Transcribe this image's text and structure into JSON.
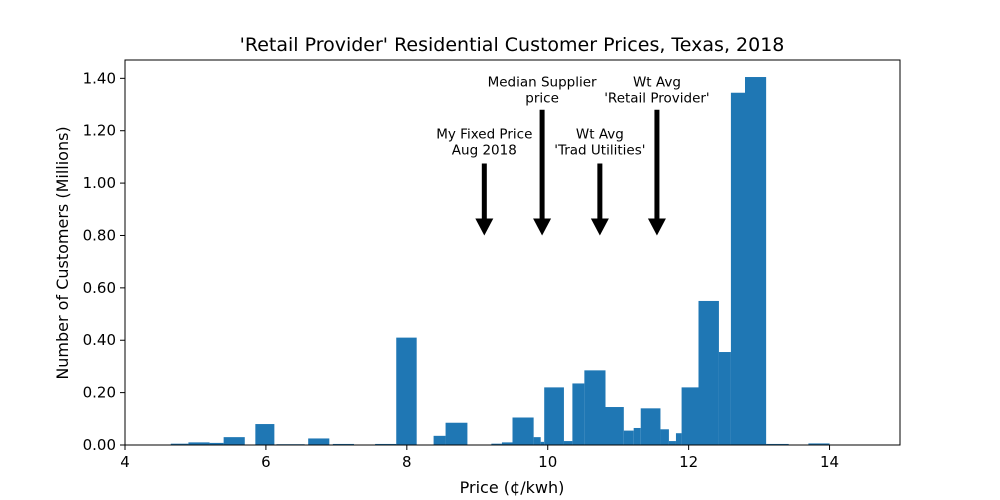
{
  "chart_data": {
    "type": "bar",
    "title": "'Retail Provider' Residential Customer Prices, Texas, 2018",
    "xlabel": "Price (¢/kwh)",
    "ylabel": "Number of Customers (Millions)",
    "xlim": [
      4,
      15
    ],
    "ylim": [
      0,
      1.47
    ],
    "xticks": [
      4,
      6,
      8,
      10,
      12,
      14
    ],
    "xtick_labels": [
      "4",
      "6",
      "8",
      "10",
      "12",
      "14"
    ],
    "yticks": [
      0,
      0.2,
      0.4,
      0.6,
      0.8,
      1.0,
      1.2,
      1.4
    ],
    "ytick_labels": [
      "0.00",
      "0.20",
      "0.40",
      "0.60",
      "0.80",
      "1.00",
      "1.20",
      "1.40"
    ],
    "grid": false,
    "bar_color": "#1f77b4",
    "bins": [
      {
        "x0": 4.65,
        "x1": 4.9,
        "value": 0.005
      },
      {
        "x0": 4.9,
        "x1": 5.2,
        "value": 0.01
      },
      {
        "x0": 5.2,
        "x1": 5.4,
        "value": 0.008
      },
      {
        "x0": 5.4,
        "x1": 5.7,
        "value": 0.03
      },
      {
        "x0": 5.85,
        "x1": 6.12,
        "value": 0.08
      },
      {
        "x0": 6.15,
        "x1": 6.55,
        "value": 0.003
      },
      {
        "x0": 6.6,
        "x1": 6.9,
        "value": 0.025
      },
      {
        "x0": 6.95,
        "x1": 7.25,
        "value": 0.004
      },
      {
        "x0": 7.55,
        "x1": 7.85,
        "value": 0.004
      },
      {
        "x0": 7.85,
        "x1": 8.14,
        "value": 0.41
      },
      {
        "x0": 8.38,
        "x1": 8.55,
        "value": 0.035
      },
      {
        "x0": 8.55,
        "x1": 8.86,
        "value": 0.085
      },
      {
        "x0": 9.2,
        "x1": 9.35,
        "value": 0.005
      },
      {
        "x0": 9.35,
        "x1": 9.5,
        "value": 0.01
      },
      {
        "x0": 9.5,
        "x1": 9.8,
        "value": 0.105
      },
      {
        "x0": 9.8,
        "x1": 9.9,
        "value": 0.03
      },
      {
        "x0": 9.9,
        "x1": 9.95,
        "value": 0.012
      },
      {
        "x0": 9.95,
        "x1": 10.23,
        "value": 0.22
      },
      {
        "x0": 10.23,
        "x1": 10.35,
        "value": 0.015
      },
      {
        "x0": 10.35,
        "x1": 10.52,
        "value": 0.235
      },
      {
        "x0": 10.52,
        "x1": 10.82,
        "value": 0.285
      },
      {
        "x0": 10.82,
        "x1": 11.08,
        "value": 0.145
      },
      {
        "x0": 11.08,
        "x1": 11.22,
        "value": 0.055
      },
      {
        "x0": 11.22,
        "x1": 11.32,
        "value": 0.065
      },
      {
        "x0": 11.32,
        "x1": 11.6,
        "value": 0.14
      },
      {
        "x0": 11.6,
        "x1": 11.72,
        "value": 0.06
      },
      {
        "x0": 11.72,
        "x1": 11.82,
        "value": 0.015
      },
      {
        "x0": 11.82,
        "x1": 11.9,
        "value": 0.045
      },
      {
        "x0": 11.9,
        "x1": 12.14,
        "value": 0.22
      },
      {
        "x0": 12.14,
        "x1": 12.43,
        "value": 0.55
      },
      {
        "x0": 12.43,
        "x1": 12.6,
        "value": 0.355
      },
      {
        "x0": 12.6,
        "x1": 12.8,
        "value": 1.345
      },
      {
        "x0": 12.8,
        "x1": 13.1,
        "value": 1.405
      },
      {
        "x0": 13.1,
        "x1": 13.42,
        "value": 0.004
      },
      {
        "x0": 13.7,
        "x1": 14.0,
        "value": 0.006
      }
    ],
    "annotations": [
      {
        "lines": [
          "My Fixed Price",
          "Aug 2018"
        ],
        "x": 9.1,
        "text_top_y": 1.185,
        "arrow_from": 1.075,
        "arrow_to": 0.8
      },
      {
        "lines": [
          "Median Supplier",
          "price"
        ],
        "x": 9.92,
        "text_top_y": 1.385,
        "arrow_from": 1.28,
        "arrow_to": 0.8
      },
      {
        "lines": [
          "Wt Avg",
          "'Trad Utilities'"
        ],
        "x": 10.74,
        "text_top_y": 1.185,
        "arrow_from": 1.075,
        "arrow_to": 0.8
      },
      {
        "lines": [
          "Wt Avg",
          "'Retail Provider'"
        ],
        "x": 11.55,
        "text_top_y": 1.385,
        "arrow_from": 1.28,
        "arrow_to": 0.8
      }
    ]
  }
}
